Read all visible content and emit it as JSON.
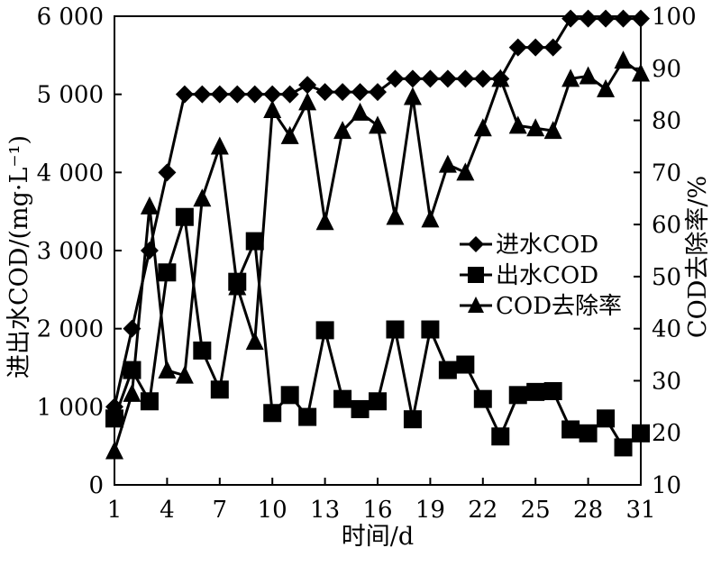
{
  "chart_data": {
    "type": "line",
    "xlabel": "时间/d",
    "ylabel_left": "进出水COD/(mg·L⁻¹)",
    "ylabel_right": "COD去除率/%",
    "x_ticks": [
      "1",
      "4",
      "7",
      "10",
      "13",
      "16",
      "19",
      "22",
      "25",
      "28",
      "31"
    ],
    "y_left_ticks": [
      "0",
      "1 000",
      "2 000",
      "3 000",
      "4 000",
      "5 000",
      "6 000"
    ],
    "y_right_ticks": [
      "10",
      "20",
      "30",
      "40",
      "50",
      "60",
      "70",
      "80",
      "90",
      "100"
    ],
    "xlim": [
      1,
      31
    ],
    "ylim_left": [
      0,
      6000
    ],
    "ylim_right": [
      10,
      100
    ],
    "grid": false,
    "legend_position": "middle-right",
    "series": [
      {
        "name": "进水COD",
        "axis": "left",
        "marker": "diamond",
        "x": [
          1,
          2,
          3,
          4,
          5,
          6,
          7,
          8,
          9,
          10,
          11,
          12,
          13,
          14,
          15,
          16,
          17,
          18,
          19,
          20,
          21,
          22,
          23,
          24,
          25,
          26,
          27,
          28,
          29,
          30,
          31
        ],
        "values": [
          1000,
          2000,
          3000,
          4000,
          5000,
          5000,
          5000,
          5000,
          5000,
          5000,
          5000,
          5120,
          5030,
          5030,
          5030,
          5030,
          5200,
          5200,
          5200,
          5200,
          5200,
          5200,
          5200,
          5600,
          5600,
          5600,
          5970,
          5970,
          5970,
          5970,
          5970
        ]
      },
      {
        "name": "出水COD",
        "axis": "left",
        "marker": "square",
        "x": [
          1,
          2,
          3,
          4,
          5,
          6,
          7,
          8,
          9,
          10,
          11,
          12,
          13,
          14,
          15,
          16,
          17,
          18,
          19,
          20,
          21,
          22,
          23,
          24,
          25,
          26,
          27,
          28,
          29,
          30,
          31
        ],
        "values": [
          850,
          1470,
          1070,
          2720,
          3430,
          1720,
          1220,
          2600,
          3120,
          920,
          1150,
          870,
          1980,
          1100,
          970,
          1070,
          1990,
          840,
          1990,
          1470,
          1540,
          1100,
          620,
          1150,
          1190,
          1200,
          710,
          660,
          850,
          480,
          660
        ]
      },
      {
        "name": "COD去除率",
        "axis": "right",
        "marker": "triangle",
        "x": [
          1,
          2,
          3,
          4,
          5,
          6,
          7,
          8,
          9,
          10,
          11,
          12,
          13,
          14,
          15,
          16,
          17,
          18,
          19,
          20,
          21,
          22,
          23,
          24,
          25,
          26,
          27,
          28,
          29,
          30,
          31
        ],
        "values": [
          16.5,
          27.5,
          63.5,
          32,
          31,
          65,
          75,
          48,
          37.5,
          82,
          77,
          83.5,
          60.5,
          78,
          81.5,
          79,
          61.5,
          84.5,
          61,
          71.5,
          70,
          78.5,
          88,
          79,
          78.5,
          78,
          88,
          88.5,
          86,
          91.5,
          89
        ]
      }
    ]
  },
  "colors": {
    "line": "#000000",
    "background": "#ffffff"
  }
}
